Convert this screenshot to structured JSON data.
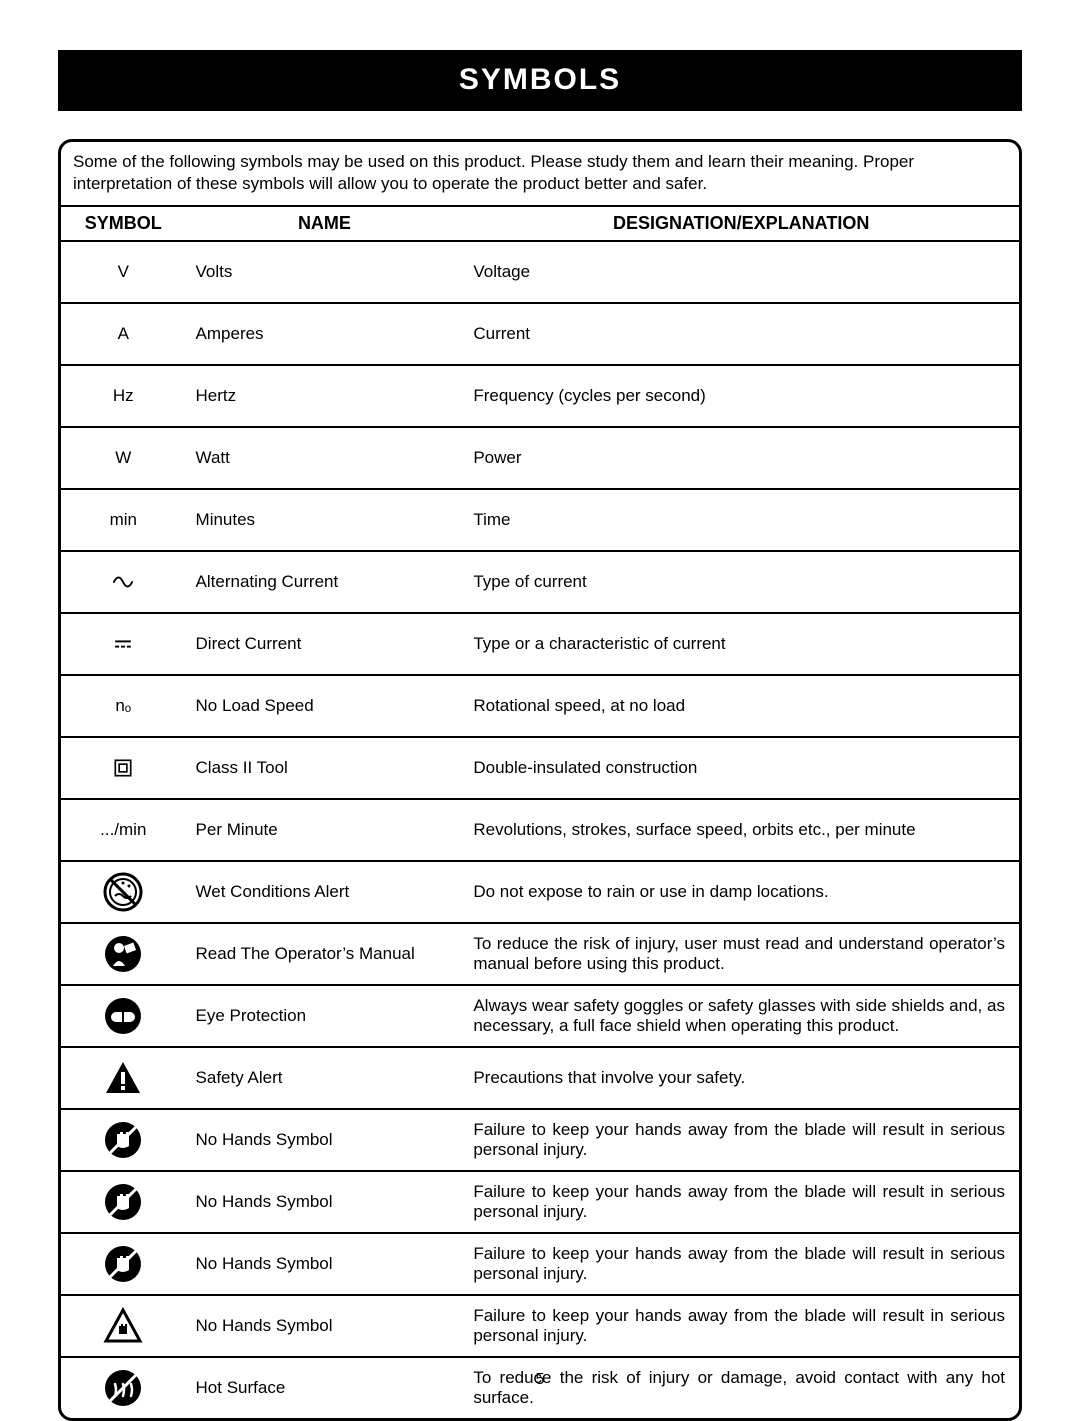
{
  "page": {
    "title": "SYMBOLS",
    "intro": "Some of the following symbols may be used on this product. Please study them and learn their meaning. Proper interpretation of these symbols will allow you to operate the product better and safer.",
    "page_number": "5",
    "background_color": "#ffffff",
    "title_bg": "#000000",
    "title_fg": "#ffffff",
    "border_color": "#000000",
    "font_family": "Arial, Helvetica, sans-serif",
    "body_fontsize": 17
  },
  "table": {
    "columns": {
      "symbol": "SYMBOL",
      "name": "NAME",
      "explanation": "DESIGNATION/EXPLANATION"
    },
    "column_widths_pct": [
      13,
      29,
      58
    ],
    "row_border_color": "#000000",
    "rows": [
      {
        "icon": "text-V",
        "symbol_text": "V",
        "name": "Volts",
        "explanation": "Voltage"
      },
      {
        "icon": "text-A",
        "symbol_text": "A",
        "name": "Amperes",
        "explanation": "Current"
      },
      {
        "icon": "text-Hz",
        "symbol_text": "Hz",
        "name": "Hertz",
        "explanation": "Frequency (cycles per second)"
      },
      {
        "icon": "text-W",
        "symbol_text": "W",
        "name": "Watt",
        "explanation": "Power"
      },
      {
        "icon": "text-min",
        "symbol_text": "min",
        "name": "Minutes",
        "explanation": "Time"
      },
      {
        "icon": "ac-wave",
        "symbol_text": "",
        "name": "Alternating Current",
        "explanation": "Type of current"
      },
      {
        "icon": "dc-line",
        "symbol_text": "",
        "name": "Direct Current",
        "explanation": "Type or a characteristic of current"
      },
      {
        "icon": "no-load",
        "symbol_text": "nₒ",
        "name": "No Load Speed",
        "explanation": "Rotational speed, at no load"
      },
      {
        "icon": "class2",
        "symbol_text": "",
        "name": "Class II Tool",
        "explanation": "Double-insulated construction"
      },
      {
        "icon": "text-permin",
        "symbol_text": ".../min",
        "name": "Per Minute",
        "explanation": "Revolutions, strokes, surface speed, orbits etc., per minute"
      },
      {
        "icon": "wet-alert",
        "symbol_text": "",
        "name": "Wet Conditions Alert",
        "explanation": "Do not expose to rain or use in damp locations."
      },
      {
        "icon": "read-manual",
        "symbol_text": "",
        "name": "Read The Operator’s Manual",
        "explanation": "To reduce the risk of injury, user must read and understand operator’s manual before using this product."
      },
      {
        "icon": "eye-protection",
        "symbol_text": "",
        "name": "Eye Protection",
        "explanation": "Always wear safety goggles or safety glasses with side shields and, as necessary, a full face shield when operating this product."
      },
      {
        "icon": "safety-alert",
        "symbol_text": "",
        "name": "Safety Alert",
        "explanation": "Precautions that involve your safety."
      },
      {
        "icon": "no-hands-1",
        "symbol_text": "",
        "name": "No Hands Symbol",
        "explanation": "Failure to keep your hands away from the blade will result in serious personal injury."
      },
      {
        "icon": "no-hands-2",
        "symbol_text": "",
        "name": "No Hands Symbol",
        "explanation": "Failure to keep your hands away from the blade will result in serious personal injury."
      },
      {
        "icon": "no-hands-3",
        "symbol_text": "",
        "name": "No Hands Symbol",
        "explanation": "Failure to keep your hands away from the blade will result in serious personal injury."
      },
      {
        "icon": "no-hands-4",
        "symbol_text": "",
        "name": "No Hands Symbol",
        "explanation": "Failure to keep your hands away from the blade will result in serious personal injury."
      },
      {
        "icon": "hot-surface",
        "symbol_text": "",
        "name": "Hot Surface",
        "explanation": "To reduce the risk of injury or damage, avoid contact with any hot surface."
      }
    ]
  }
}
